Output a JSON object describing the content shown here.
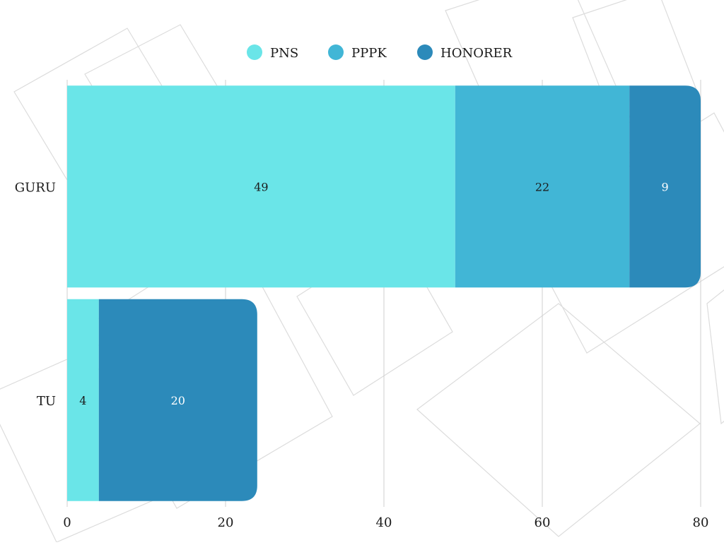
{
  "chart_data": {
    "type": "bar",
    "orientation": "horizontal",
    "stacked": true,
    "categories": [
      "GURU",
      "TU"
    ],
    "series": [
      {
        "name": "PNS",
        "color": "#6ae5e8",
        "values": [
          49,
          4
        ]
      },
      {
        "name": "PPPK",
        "color": "#41b6d6",
        "values": [
          22,
          0
        ]
      },
      {
        "name": "HONORER",
        "color": "#2c8aba",
        "values": [
          9,
          20
        ]
      }
    ],
    "xlim": [
      0,
      80
    ],
    "x_ticks": [
      "0",
      "20",
      "40",
      "60",
      "80"
    ],
    "grid": true,
    "legend_position": "top-center",
    "data_labels": true,
    "title": "",
    "xlabel": "",
    "ylabel": ""
  }
}
